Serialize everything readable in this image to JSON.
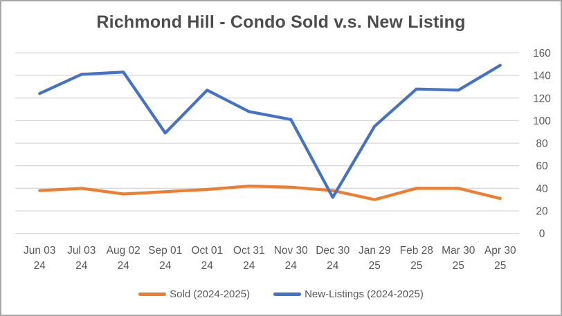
{
  "window": {
    "border_color": "#A6A6A6",
    "background_color": "#FFFFFF"
  },
  "title": "Richmond Hill - Condo Sold v.s. New Listing",
  "legend": {
    "items": [
      {
        "label": "Sold (2024-2025)",
        "color": "#ED7D31"
      },
      {
        "label": "New-Listings (2024-2025)",
        "color": "#4472C4"
      }
    ]
  },
  "colors": {
    "title_text": "#4D4D4D",
    "axis_text": "#595959",
    "gridline": "#D9D9D9",
    "sold_series": "#ED7D31",
    "new_listings_series": "#4472C4"
  },
  "chart_data": {
    "type": "line",
    "title": "Richmond Hill - Condo Sold v.s. New Listing",
    "categories": [
      [
        "Jun 03",
        "24"
      ],
      [
        "Jul 03",
        "24"
      ],
      [
        "Aug 02",
        "24"
      ],
      [
        "Sep 01",
        "24"
      ],
      [
        "Oct 01",
        "24"
      ],
      [
        "Oct 31",
        "24"
      ],
      [
        "Nov 30",
        "24"
      ],
      [
        "Dec 30",
        "24"
      ],
      [
        "Jan 29",
        "25"
      ],
      [
        "Feb 28",
        "25"
      ],
      [
        "Mar 30",
        "25"
      ],
      [
        "Apr 30",
        "25"
      ]
    ],
    "series": [
      {
        "name": "Sold (2024-2025)",
        "color": "#ED7D31",
        "values": [
          38,
          40,
          35,
          37,
          39,
          42,
          41,
          38,
          30,
          40,
          40,
          31
        ]
      },
      {
        "name": "New-Listings (2024-2025)",
        "color": "#4472C4",
        "values": [
          124,
          141,
          143,
          89,
          127,
          108,
          101,
          32,
          95,
          128,
          127,
          149
        ]
      }
    ],
    "xlabel": "",
    "ylabel": "",
    "ylim": [
      0,
      160
    ],
    "ytick_step": 20,
    "ytick_labels": [
      "0",
      "20",
      "40",
      "60",
      "80",
      "100",
      "120",
      "140",
      "160"
    ],
    "yaxis_side": "right",
    "grid": true,
    "legend_position": "bottom"
  }
}
